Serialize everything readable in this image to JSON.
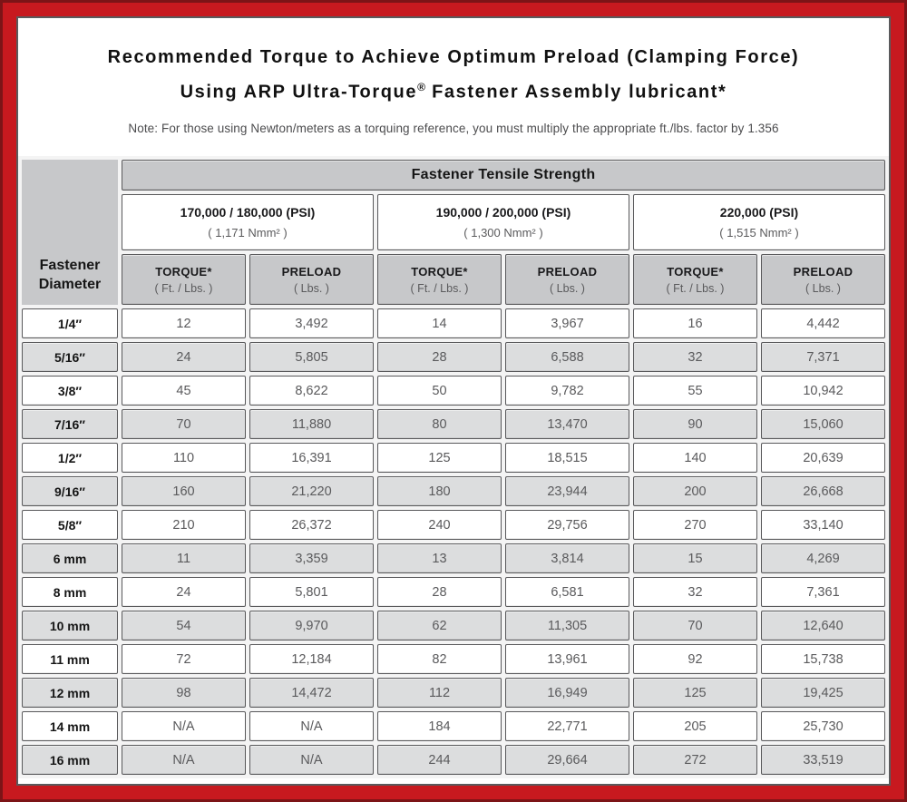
{
  "header": {
    "title_line1": "Recommended Torque to Achieve Optimum Preload (Clamping Force)",
    "title_line2_pre": "Using ARP Ultra-Torque",
    "title_line2_sup": "®",
    "title_line2_post": " Fastener Assembly lubricant*",
    "note": "Note: For those using Newton/meters as a torquing reference, you must multiply the appropriate ft./lbs. factor by 1.356"
  },
  "table": {
    "corner_label_line1": "Fastener",
    "corner_label_line2": "Diameter",
    "group_header": "Fastener Tensile Strength",
    "psi_groups": [
      {
        "psi": "170,000 / 180,000 (PSI)",
        "nmm": "( 1,171 Nmm² )"
      },
      {
        "psi": "190,000 / 200,000 (PSI)",
        "nmm": "( 1,300 Nmm² )"
      },
      {
        "psi": "220,000 (PSI)",
        "nmm": "( 1,515 Nmm² )"
      }
    ],
    "sub_headers": {
      "torque_label": "TORQUE*",
      "torque_unit": "( Ft. / Lbs. )",
      "preload_label": "PRELOAD",
      "preload_unit": "( Lbs. )"
    },
    "rows": [
      {
        "diameter": "1/4″",
        "values": [
          "12",
          "3,492",
          "14",
          "3,967",
          "16",
          "4,442"
        ]
      },
      {
        "diameter": "5/16″",
        "values": [
          "24",
          "5,805",
          "28",
          "6,588",
          "32",
          "7,371"
        ]
      },
      {
        "diameter": "3/8″",
        "values": [
          "45",
          "8,622",
          "50",
          "9,782",
          "55",
          "10,942"
        ]
      },
      {
        "diameter": "7/16″",
        "values": [
          "70",
          "11,880",
          "80",
          "13,470",
          "90",
          "15,060"
        ]
      },
      {
        "diameter": "1/2″",
        "values": [
          "110",
          "16,391",
          "125",
          "18,515",
          "140",
          "20,639"
        ]
      },
      {
        "diameter": "9/16″",
        "values": [
          "160",
          "21,220",
          "180",
          "23,944",
          "200",
          "26,668"
        ]
      },
      {
        "diameter": "5/8″",
        "values": [
          "210",
          "26,372",
          "240",
          "29,756",
          "270",
          "33,140"
        ]
      },
      {
        "diameter": "6 mm",
        "values": [
          "11",
          "3,359",
          "13",
          "3,814",
          "15",
          "4,269"
        ]
      },
      {
        "diameter": "8 mm",
        "values": [
          "24",
          "5,801",
          "28",
          "6,581",
          "32",
          "7,361"
        ]
      },
      {
        "diameter": "10 mm",
        "values": [
          "54",
          "9,970",
          "62",
          "11,305",
          "70",
          "12,640"
        ]
      },
      {
        "diameter": "11 mm",
        "values": [
          "72",
          "12,184",
          "82",
          "13,961",
          "92",
          "15,738"
        ]
      },
      {
        "diameter": "12 mm",
        "values": [
          "98",
          "14,472",
          "112",
          "16,949",
          "125",
          "19,425"
        ]
      },
      {
        "diameter": "14 mm",
        "values": [
          "N/A",
          "N/A",
          "184",
          "22,771",
          "205",
          "25,730"
        ]
      },
      {
        "diameter": "16 mm",
        "values": [
          "N/A",
          "N/A",
          "244",
          "29,664",
          "272",
          "33,519"
        ]
      }
    ]
  },
  "colors": {
    "frame_red": "#c7191f",
    "frame_edge": "#7c1417",
    "header_gray": "#c7c8ca",
    "alt_row_gray": "#dcddde",
    "cell_border": "#59595b",
    "value_text": "#5a5a5c"
  }
}
